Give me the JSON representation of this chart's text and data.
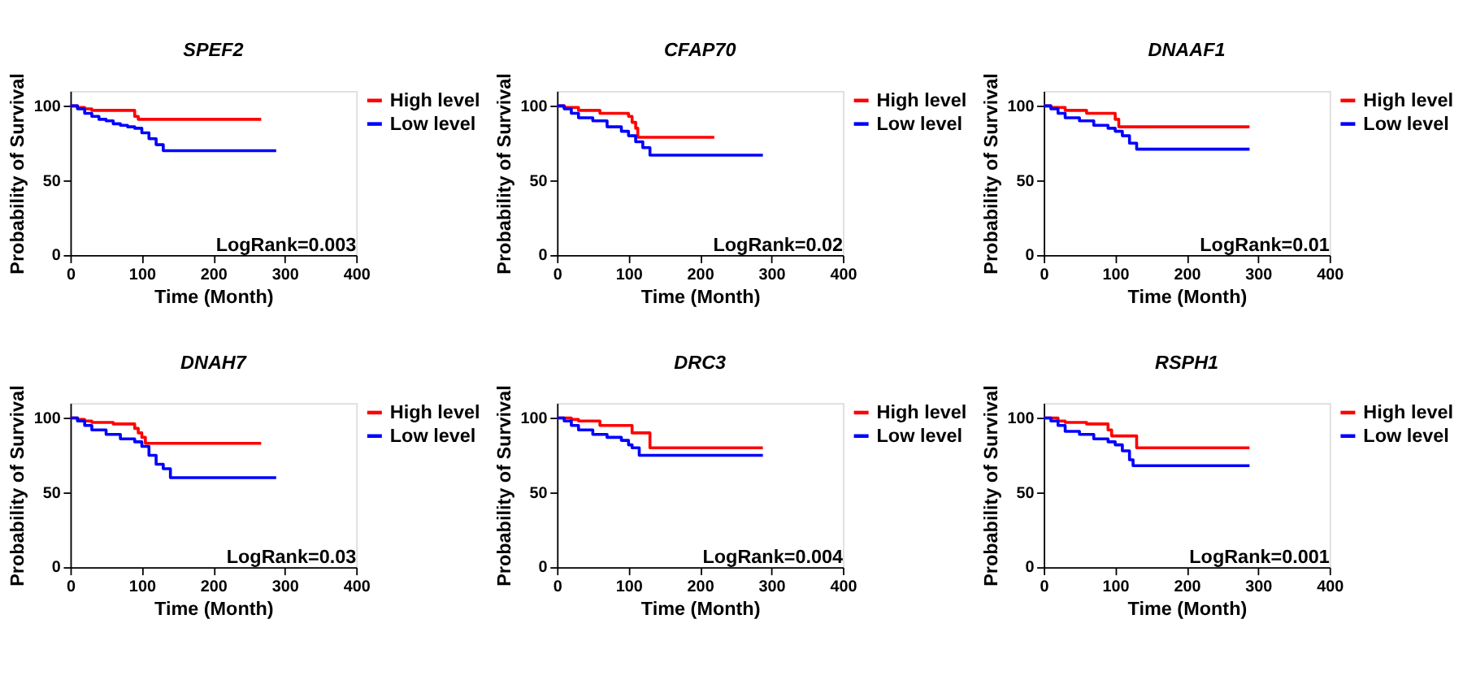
{
  "chart_data": [
    {
      "type": "step",
      "title": "SPEF2",
      "xlabel": "Time (Month)",
      "ylabel": "Probability of Survival",
      "xlim": [
        0,
        400
      ],
      "xticks": [
        0,
        100,
        200,
        300,
        400
      ],
      "ylim": [
        0,
        110
      ],
      "yticks": [
        0,
        50,
        100
      ],
      "grid": false,
      "legend": "top right",
      "annotations": [
        "LogRank=0.003"
      ],
      "series": [
        {
          "name": "High level",
          "color": "#ff0000",
          "x": [
            0,
            10,
            20,
            30,
            90,
            95,
            267
          ],
          "values": [
            100,
            99,
            98,
            97,
            93,
            91,
            91
          ]
        },
        {
          "name": "Low level",
          "color": "#0000ff",
          "x": [
            0,
            10,
            20,
            30,
            40,
            50,
            60,
            70,
            80,
            90,
            100,
            110,
            120,
            130,
            288
          ],
          "values": [
            100,
            98,
            95,
            93,
            91,
            90,
            88,
            87,
            86,
            85,
            82,
            78,
            74,
            70,
            70
          ]
        }
      ]
    },
    {
      "type": "step",
      "title": "CFAP70",
      "xlabel": "Time (Month)",
      "ylabel": "Probability of Survival",
      "xlim": [
        0,
        400
      ],
      "xticks": [
        0,
        100,
        200,
        300,
        400
      ],
      "ylim": [
        0,
        110
      ],
      "yticks": [
        0,
        50,
        100
      ],
      "grid": false,
      "legend": "top right",
      "annotations": [
        "LogRank=0.02"
      ],
      "series": [
        {
          "name": "High level",
          "color": "#ff0000",
          "x": [
            0,
            10,
            30,
            60,
            100,
            105,
            110,
            113,
            220
          ],
          "values": [
            100,
            99,
            97,
            95,
            93,
            89,
            85,
            79,
            79
          ]
        },
        {
          "name": "Low level",
          "color": "#0000ff",
          "x": [
            0,
            10,
            20,
            30,
            50,
            70,
            90,
            100,
            110,
            120,
            130,
            288
          ],
          "values": [
            100,
            98,
            95,
            92,
            90,
            86,
            83,
            80,
            76,
            72,
            67,
            67
          ]
        }
      ]
    },
    {
      "type": "step",
      "title": "DNAAF1",
      "xlabel": "Time (Month)",
      "ylabel": "Probability of Survival",
      "xlim": [
        0,
        400
      ],
      "xticks": [
        0,
        100,
        200,
        300,
        400
      ],
      "ylim": [
        0,
        110
      ],
      "yticks": [
        0,
        50,
        100
      ],
      "grid": false,
      "legend": "top right",
      "annotations": [
        "LogRank=0.01"
      ],
      "series": [
        {
          "name": "High level",
          "color": "#ff0000",
          "x": [
            0,
            10,
            30,
            60,
            100,
            105,
            288
          ],
          "values": [
            100,
            99,
            97,
            95,
            91,
            86,
            86
          ]
        },
        {
          "name": "Low level",
          "color": "#0000ff",
          "x": [
            0,
            10,
            20,
            30,
            50,
            70,
            90,
            100,
            110,
            120,
            130,
            288
          ],
          "values": [
            100,
            98,
            95,
            92,
            90,
            87,
            85,
            83,
            80,
            75,
            71,
            71
          ]
        }
      ]
    },
    {
      "type": "step",
      "title": "DNAH7",
      "xlabel": "Time (Month)",
      "ylabel": "Probability of Survival",
      "xlim": [
        0,
        400
      ],
      "xticks": [
        0,
        100,
        200,
        300,
        400
      ],
      "ylim": [
        0,
        110
      ],
      "yticks": [
        0,
        50,
        100
      ],
      "grid": false,
      "legend": "top right",
      "annotations": [
        "LogRank=0.03"
      ],
      "series": [
        {
          "name": "High level",
          "color": "#ff0000",
          "x": [
            0,
            10,
            20,
            30,
            60,
            90,
            95,
            100,
            105,
            267
          ],
          "values": [
            100,
            99,
            98,
            97,
            96,
            93,
            90,
            87,
            83,
            83
          ]
        },
        {
          "name": "Low level",
          "color": "#0000ff",
          "x": [
            0,
            10,
            20,
            30,
            50,
            70,
            90,
            100,
            110,
            120,
            130,
            140,
            288
          ],
          "values": [
            100,
            98,
            95,
            92,
            89,
            86,
            84,
            81,
            75,
            69,
            66,
            60,
            60
          ]
        }
      ]
    },
    {
      "type": "step",
      "title": "DRC3",
      "xlabel": "Time (Month)",
      "ylabel": "Probability of Survival",
      "xlim": [
        0,
        400
      ],
      "xticks": [
        0,
        100,
        200,
        300,
        400
      ],
      "ylim": [
        0,
        110
      ],
      "yticks": [
        0,
        50,
        100
      ],
      "grid": false,
      "legend": "top right",
      "annotations": [
        "LogRank=0.004"
      ],
      "series": [
        {
          "name": "High level",
          "color": "#ff0000",
          "x": [
            0,
            20,
            30,
            60,
            105,
            130,
            288
          ],
          "values": [
            100,
            99,
            98,
            95,
            90,
            80,
            80
          ]
        },
        {
          "name": "Low level",
          "color": "#0000ff",
          "x": [
            0,
            10,
            20,
            30,
            50,
            70,
            90,
            100,
            105,
            115,
            288
          ],
          "values": [
            100,
            98,
            95,
            92,
            89,
            87,
            85,
            82,
            80,
            75,
            75
          ]
        }
      ]
    },
    {
      "type": "step",
      "title": "RSPH1",
      "xlabel": "Time (Month)",
      "ylabel": "Probability of Survival",
      "xlim": [
        0,
        400
      ],
      "xticks": [
        0,
        100,
        200,
        300,
        400
      ],
      "ylim": [
        0,
        110
      ],
      "yticks": [
        0,
        50,
        100
      ],
      "grid": false,
      "legend": "top right",
      "annotations": [
        "LogRank=0.001"
      ],
      "series": [
        {
          "name": "High level",
          "color": "#ff0000",
          "x": [
            0,
            20,
            30,
            60,
            90,
            95,
            130,
            288
          ],
          "values": [
            100,
            98,
            97,
            96,
            92,
            88,
            80,
            80
          ]
        },
        {
          "name": "Low level",
          "color": "#0000ff",
          "x": [
            0,
            10,
            20,
            30,
            50,
            70,
            90,
            100,
            110,
            120,
            125,
            288
          ],
          "values": [
            100,
            98,
            95,
            91,
            89,
            86,
            84,
            82,
            78,
            72,
            68,
            68
          ]
        }
      ]
    }
  ]
}
